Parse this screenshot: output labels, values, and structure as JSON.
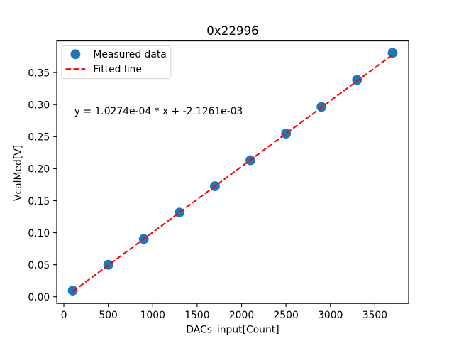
{
  "chart_data": {
    "type": "scatter",
    "title": "0x22996",
    "xlabel": "DACs_input[Count]",
    "ylabel": "VcalMed[V]",
    "annotation": "y = 1.0274e-04 * x + -2.1261e-03",
    "series": [
      {
        "name": "Measured data",
        "type": "scatter",
        "color": "#1f77b4",
        "x": [
          100,
          500,
          900,
          1300,
          1700,
          2100,
          2500,
          2900,
          3300,
          3700
        ],
        "y": [
          0.0097,
          0.0499,
          0.0902,
          0.1314,
          0.1727,
          0.2131,
          0.2547,
          0.2965,
          0.3386,
          0.3808
        ]
      },
      {
        "name": "Fitted line",
        "type": "line",
        "style": "dashed",
        "color": "#ff0000",
        "fit": {
          "slope": 0.00010274,
          "intercept": -0.0021261
        },
        "x_range": [
          100,
          3700
        ]
      }
    ],
    "x_ticks": [
      0,
      500,
      1000,
      1500,
      2000,
      2500,
      3000,
      3500
    ],
    "y_ticks": [
      0.0,
      0.05,
      0.1,
      0.15,
      0.2,
      0.25,
      0.3,
      0.35
    ],
    "xlim": [
      -80,
      3880
    ],
    "ylim": [
      -0.010484705,
      0.399432605
    ],
    "grid": false,
    "legend": {
      "position": "upper left",
      "frame_color": "#d6d6d6",
      "background": "#ffffff"
    },
    "text_color": "#000000",
    "background_color": "#ffffff"
  }
}
